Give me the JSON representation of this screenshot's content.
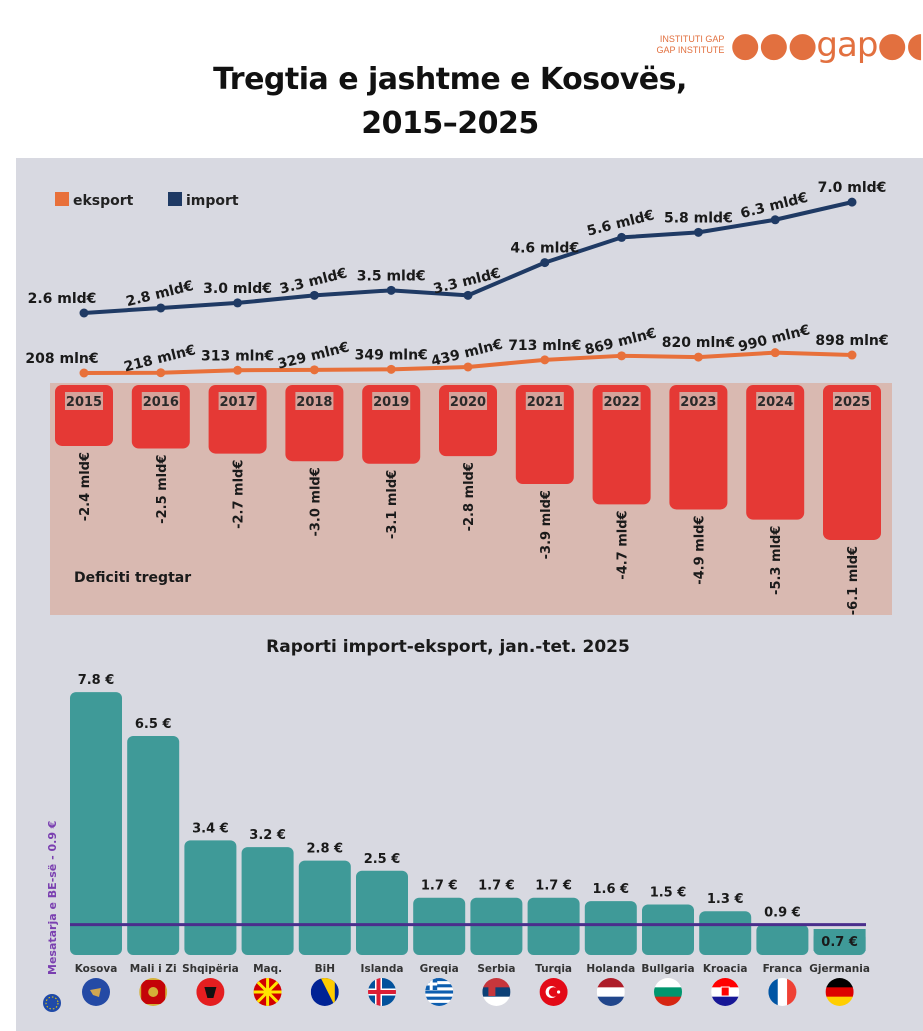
{
  "logo": {
    "line1": "INSTITUTI GAP",
    "line2": "GAP INSTITUTE",
    "mark": "gap"
  },
  "title": {
    "line1": "Tregtia e jashtme e Kosovës,",
    "line2": "2015–2025"
  },
  "colors": {
    "export": "#e8703a",
    "import": "#1f3a64",
    "deficit": "#e53935",
    "deficit_bg": "#d9b9b1",
    "ratio_bar": "#3f9a98",
    "eu_line": "#4a2e8c",
    "panel": "#d8d9e1"
  },
  "chart_data": [
    {
      "type": "line",
      "title": "Tregtia e jashtme e Kosovës, 2015–2025",
      "legend": [
        "eksport",
        "import"
      ],
      "legend_placement": "top-left",
      "x": [
        "2015",
        "2016",
        "2017",
        "2018",
        "2019",
        "2020",
        "2021",
        "2022",
        "2023",
        "2024",
        "2025"
      ],
      "series": [
        {
          "name": "import",
          "unit": "mld€",
          "values": [
            2.6,
            2.8,
            3.0,
            3.3,
            3.5,
            3.3,
            4.6,
            5.6,
            5.8,
            6.3,
            7.0
          ],
          "labels": [
            "2.6 mld€",
            "2.8 mld€",
            "3.0 mld€",
            "3.3 mld€",
            "3.5 mld€",
            "3.3 mld€",
            "4.6 mld€",
            "5.6 mld€",
            "5.8 mld€",
            "6.3 mld€",
            "7.0 mld€"
          ]
        },
        {
          "name": "eksport",
          "unit": "mln€",
          "values": [
            208,
            218,
            313,
            329,
            349,
            439,
            713,
            869,
            820,
            990,
            898
          ],
          "labels": [
            "208 mln€",
            "218 mln€",
            "313 mln€",
            "329 mln€",
            "349 mln€",
            "439 mln€",
            "713 mln€",
            "869 mln€",
            "820 mln€",
            "990 mln€",
            "898 mln€"
          ]
        }
      ]
    },
    {
      "type": "bar",
      "title": "Deficiti tregtar",
      "categories": [
        "2015",
        "2016",
        "2017",
        "2018",
        "2019",
        "2020",
        "2021",
        "2022",
        "2023",
        "2024",
        "2025"
      ],
      "values": [
        -2.4,
        -2.5,
        -2.7,
        -3.0,
        -3.1,
        -2.8,
        -3.9,
        -4.7,
        -4.9,
        -5.3,
        -6.1
      ],
      "labels": [
        "-2.4 mld€",
        "-2.5 mld€",
        "-2.7 mld€",
        "-3.0 mld€",
        "-3.1 mld€",
        "-2.8 mld€",
        "-3.9 mld€",
        "-4.7 mld€",
        "-4.9 mld€",
        "-5.3 mld€",
        "-6.1 mld€"
      ],
      "unit": "mld€"
    },
    {
      "type": "bar",
      "title": "Raporti import-eksport, jan.-tet. 2025",
      "categories": [
        "Kosova",
        "Mali i Zi",
        "Shqipëria",
        "Maq.",
        "BiH",
        "Islanda",
        "Greqia",
        "Serbia",
        "Turqia",
        "Holanda",
        "Bullgaria",
        "Kroacia",
        "Franca",
        "Gjermania"
      ],
      "values": [
        7.8,
        6.5,
        3.4,
        3.2,
        2.8,
        2.5,
        1.7,
        1.7,
        1.7,
        1.6,
        1.5,
        1.3,
        0.9,
        0.7
      ],
      "labels": [
        "7.8 €",
        "6.5 €",
        "3.4 €",
        "3.2 €",
        "2.8 €",
        "2.5 €",
        "1.7 €",
        "1.7 €",
        "1.7 €",
        "1.6 €",
        "1.5 €",
        "1.3 €",
        "0.9 €",
        "0.7 €"
      ],
      "flags": [
        "kosovo-flag-icon",
        "montenegro-flag-icon",
        "albania-flag-icon",
        "north-macedonia-flag-icon",
        "bosnia-flag-icon",
        "iceland-flag-icon",
        "greece-flag-icon",
        "serbia-flag-icon",
        "turkey-flag-icon",
        "netherlands-flag-icon",
        "bulgaria-flag-icon",
        "croatia-flag-icon",
        "france-flag-icon",
        "germany-flag-icon"
      ],
      "reference_line": {
        "label": "Mesatarja e BE-së - 0.9 €",
        "value": 0.9,
        "icon": "eu-flag-icon"
      }
    }
  ]
}
